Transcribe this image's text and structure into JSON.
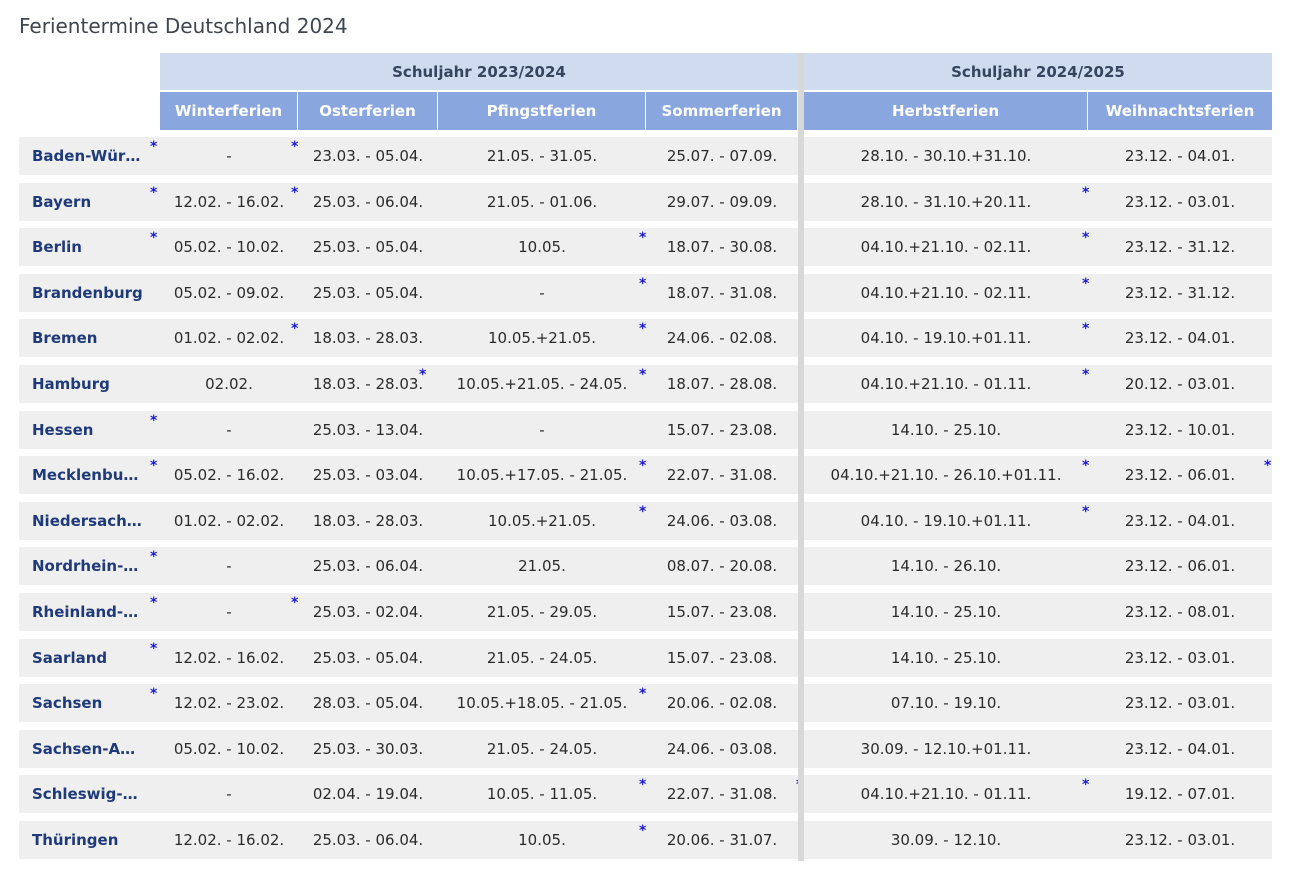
{
  "title": "Ferientermine Deutschland 2024",
  "groups": [
    "Schuljahr 2023/2024",
    "Schuljahr 2024/2025"
  ],
  "columns": [
    "Winterferien",
    "Osterferien",
    "Pfingstferien",
    "Sommerferien",
    "Herbstferien",
    "Weihnachtsferien"
  ],
  "rows": [
    {
      "state": "Baden-Wür…",
      "cells": [
        "-",
        "23.03. - 05.04.",
        "21.05. - 31.05.",
        "25.07. - 07.09.",
        "28.10. - 30.10.+31.10.",
        "23.12. - 04.01."
      ],
      "stars": [
        "state",
        "c0"
      ]
    },
    {
      "state": "Bayern",
      "cells": [
        "12.02. - 16.02.",
        "25.03. - 06.04.",
        "21.05. - 01.06.",
        "29.07. - 09.09.",
        "28.10. - 31.10.+20.11.",
        "23.12. - 03.01."
      ],
      "stars": [
        "state",
        "c0",
        "c4"
      ]
    },
    {
      "state": "Berlin",
      "cells": [
        "05.02. - 10.02.",
        "25.03. - 05.04.",
        "10.05.",
        "18.07. - 30.08.",
        "04.10.+21.10. - 02.11.",
        "23.12. - 31.12."
      ],
      "stars": [
        "state",
        "c2",
        "c4"
      ]
    },
    {
      "state": "Brandenburg",
      "cells": [
        "05.02. - 09.02.",
        "25.03. - 05.04.",
        "-",
        "18.07. - 31.08.",
        "04.10.+21.10. - 02.11.",
        "23.12. - 31.12."
      ],
      "stars": [
        "c2",
        "c4"
      ]
    },
    {
      "state": "Bremen",
      "cells": [
        "01.02. - 02.02.",
        "18.03. - 28.03.",
        "10.05.+21.05.",
        "24.06. - 02.08.",
        "04.10. - 19.10.+01.11.",
        "23.12. - 04.01."
      ],
      "stars": [
        "c0",
        "c2",
        "c4"
      ]
    },
    {
      "state": "Hamburg",
      "cells": [
        "02.02.",
        "18.03. - 28.03.",
        "10.05.+21.05. - 24.05.",
        "18.07. - 28.08.",
        "04.10.+21.10. - 01.11.",
        "20.12. - 03.01."
      ],
      "stars": [
        "c1",
        "c2",
        "c4"
      ]
    },
    {
      "state": "Hessen",
      "cells": [
        "-",
        "25.03. - 13.04.",
        "-",
        "15.07. - 23.08.",
        "14.10. - 25.10.",
        "23.12. - 10.01."
      ],
      "stars": [
        "state"
      ]
    },
    {
      "state": "Mecklenbu…",
      "cells": [
        "05.02. - 16.02.",
        "25.03. - 03.04.",
        "10.05.+17.05. - 21.05.",
        "22.07. - 31.08.",
        "04.10.+21.10. - 26.10.+01.11.",
        "23.12. - 06.01."
      ],
      "stars": [
        "state",
        "c2",
        "c4",
        "c5"
      ]
    },
    {
      "state": "Niedersach…",
      "cells": [
        "01.02. - 02.02.",
        "18.03. - 28.03.",
        "10.05.+21.05.",
        "24.06. - 03.08.",
        "04.10. - 19.10.+01.11.",
        "23.12. - 04.01."
      ],
      "stars": [
        "c2",
        "c4"
      ]
    },
    {
      "state": "Nordrhein-…",
      "cells": [
        "-",
        "25.03. - 06.04.",
        "21.05.",
        "08.07. - 20.08.",
        "14.10. - 26.10.",
        "23.12. - 06.01."
      ],
      "stars": [
        "state"
      ]
    },
    {
      "state": "Rheinland-…",
      "cells": [
        "-",
        "25.03. - 02.04.",
        "21.05. - 29.05.",
        "15.07. - 23.08.",
        "14.10. - 25.10.",
        "23.12. - 08.01."
      ],
      "stars": [
        "state",
        "c0"
      ]
    },
    {
      "state": "Saarland",
      "cells": [
        "12.02. - 16.02.",
        "25.03. - 05.04.",
        "21.05. - 24.05.",
        "15.07. - 23.08.",
        "14.10. - 25.10.",
        "23.12. - 03.01."
      ],
      "stars": [
        "state"
      ]
    },
    {
      "state": "Sachsen",
      "cells": [
        "12.02. - 23.02.",
        "28.03. - 05.04.",
        "10.05.+18.05. - 21.05.",
        "20.06. - 02.08.",
        "07.10. - 19.10.",
        "23.12. - 03.01."
      ],
      "stars": [
        "state",
        "c2"
      ]
    },
    {
      "state": "Sachsen-A…",
      "cells": [
        "05.02. - 10.02.",
        "25.03. - 30.03.",
        "21.05. - 24.05.",
        "24.06. - 03.08.",
        "30.09. - 12.10.+01.11.",
        "23.12. - 04.01."
      ],
      "stars": []
    },
    {
      "state": "Schleswig-…",
      "cells": [
        "-",
        "02.04. - 19.04.",
        "10.05. - 11.05.",
        "22.07. - 31.08.",
        "04.10.+21.10. - 01.11.",
        "19.12. - 07.01."
      ],
      "stars": [
        "c2",
        "c3",
        "c4"
      ]
    },
    {
      "state": "Thüringen",
      "cells": [
        "12.02. - 16.02.",
        "25.03. - 06.04.",
        "10.05.",
        "20.06. - 31.07.",
        "30.09. - 12.10.",
        "23.12. - 03.01."
      ],
      "stars": [
        "c2"
      ]
    }
  ],
  "star_symbol": "*",
  "colors": {
    "group_bg": "#cfdcf0",
    "header_bg": "#8aa6de",
    "row_bg": "#efefef",
    "state_text": "#1f3a7a",
    "star": "#1b1bd6"
  }
}
